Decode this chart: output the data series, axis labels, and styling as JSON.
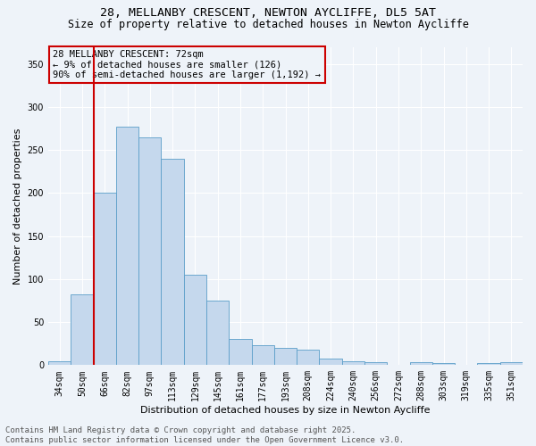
{
  "title_line1": "28, MELLANBY CRESCENT, NEWTON AYCLIFFE, DL5 5AT",
  "title_line2": "Size of property relative to detached houses in Newton Aycliffe",
  "xlabel": "Distribution of detached houses by size in Newton Aycliffe",
  "ylabel": "Number of detached properties",
  "categories": [
    "34sqm",
    "50sqm",
    "66sqm",
    "82sqm",
    "97sqm",
    "113sqm",
    "129sqm",
    "145sqm",
    "161sqm",
    "177sqm",
    "193sqm",
    "208sqm",
    "224sqm",
    "240sqm",
    "256sqm",
    "272sqm",
    "288sqm",
    "303sqm",
    "319sqm",
    "335sqm",
    "351sqm"
  ],
  "values": [
    5,
    82,
    200,
    277,
    265,
    240,
    105,
    75,
    30,
    23,
    20,
    18,
    8,
    5,
    3,
    0,
    3,
    2,
    0,
    2,
    3
  ],
  "bar_color": "#c5d8ed",
  "bar_edge_color": "#5b9ec9",
  "vline_index": 2,
  "vline_color": "#cc0000",
  "annotation_text": "28 MELLANBY CRESCENT: 72sqm\n← 9% of detached houses are smaller (126)\n90% of semi-detached houses are larger (1,192) →",
  "box_edge_color": "#cc0000",
  "ylim": [
    0,
    370
  ],
  "yticks": [
    0,
    50,
    100,
    150,
    200,
    250,
    300,
    350
  ],
  "bg_color": "#eef3f9",
  "grid_color": "#ffffff",
  "title_fontsize": 9.5,
  "subtitle_fontsize": 8.5,
  "axis_label_fontsize": 8,
  "tick_fontsize": 7,
  "annotation_fontsize": 7.5,
  "footer_fontsize": 6.5,
  "footer_line1": "Contains HM Land Registry data © Crown copyright and database right 2025.",
  "footer_line2": "Contains public sector information licensed under the Open Government Licence v3.0."
}
